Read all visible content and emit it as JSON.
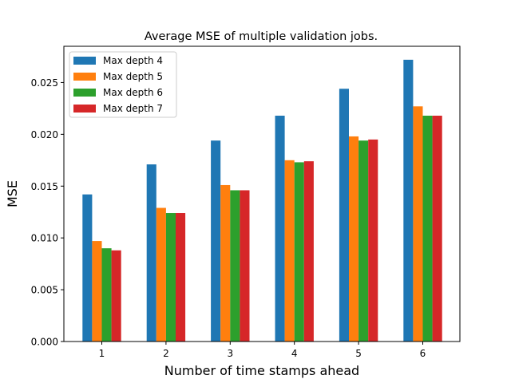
{
  "chart_data": {
    "type": "bar",
    "title": "Average MSE of multiple validation jobs.",
    "xlabel": "Number of time stamps ahead",
    "ylabel": "MSE",
    "categories": [
      "1",
      "2",
      "3",
      "4",
      "5",
      "6"
    ],
    "ylim": [
      0,
      0.0285
    ],
    "yticks": [
      "0.000",
      "0.005",
      "0.010",
      "0.015",
      "0.020",
      "0.025"
    ],
    "grid": false,
    "legend_position": "top-left",
    "series": [
      {
        "name": "Max depth 4",
        "color": "#1f77b4",
        "values": [
          0.0142,
          0.0171,
          0.0194,
          0.0218,
          0.0244,
          0.0272
        ]
      },
      {
        "name": "Max depth 5",
        "color": "#ff7f0e",
        "values": [
          0.0097,
          0.0129,
          0.0151,
          0.0175,
          0.0198,
          0.0227
        ]
      },
      {
        "name": "Max depth 6",
        "color": "#2ca02c",
        "values": [
          0.009,
          0.0124,
          0.0146,
          0.0173,
          0.0194,
          0.0218
        ]
      },
      {
        "name": "Max depth 7",
        "color": "#d62728",
        "values": [
          0.0088,
          0.0124,
          0.0146,
          0.0174,
          0.0195,
          0.0218
        ]
      }
    ]
  }
}
